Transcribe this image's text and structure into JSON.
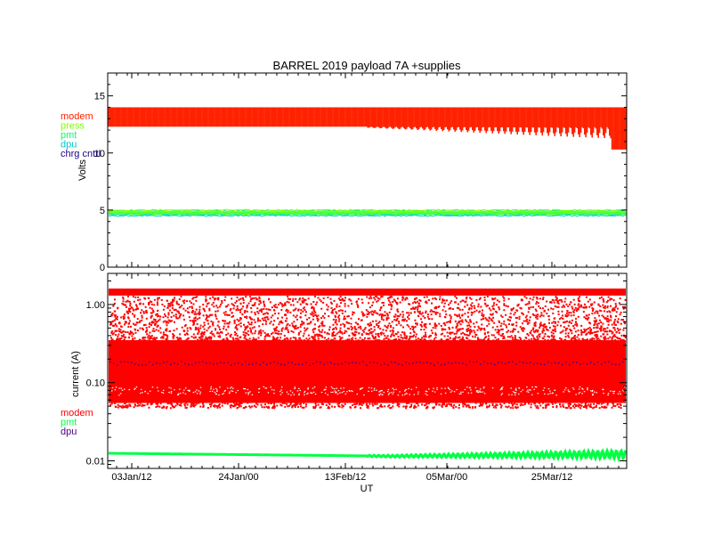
{
  "chart_data": [
    {
      "type": "scatter",
      "title": "BARREL 2019 payload 7A +supplies",
      "ylabel": "Volts",
      "ylim": [
        0,
        17
      ],
      "yticks": [
        0,
        5,
        10,
        15
      ],
      "ytick_labels": [
        "0",
        "5",
        "10",
        "15"
      ],
      "legend_placement": "left-outside",
      "series": [
        {
          "name": "modem",
          "color": "#ff2200",
          "band": [
            12.3,
            14.0
          ],
          "end_value": 10.3
        },
        {
          "name": "press",
          "color": "#7fff00",
          "band": [
            4.7,
            5.0
          ]
        },
        {
          "name": "pmt",
          "color": "#00ff66",
          "band": [
            4.6,
            4.95
          ]
        },
        {
          "name": "dpu",
          "color": "#00c8c8",
          "band": [
            4.5,
            4.8
          ]
        },
        {
          "name": "chrg cntrl",
          "color": "#1a0088",
          "band": null
        }
      ]
    },
    {
      "type": "scatter",
      "ylabel": "current (A)",
      "yscale": "log",
      "ylim": [
        0.008,
        2.5
      ],
      "yticks": [
        0.01,
        0.1,
        1.0
      ],
      "ytick_labels": [
        "0.01",
        "0.10",
        "1.00"
      ],
      "xlabel": "UT",
      "xticks": [
        "03Jan/12",
        "24Jan/00",
        "13Feb/12",
        "05Mar/00",
        "25Mar/12"
      ],
      "legend_placement": "left-outside",
      "series": [
        {
          "name": "modem",
          "color": "#ff0000",
          "dense_band": [
            0.055,
            0.35
          ],
          "upper_band": [
            1.3,
            1.6
          ],
          "scatter_between": [
            0.35,
            1.3
          ]
        },
        {
          "name": "pmt",
          "color": "#00ff44",
          "start_value": 0.0125,
          "end_value": 0.013
        },
        {
          "name": "dpu",
          "color": "#4b0082",
          "band": [
            0.17,
            0.19
          ]
        }
      ]
    }
  ]
}
